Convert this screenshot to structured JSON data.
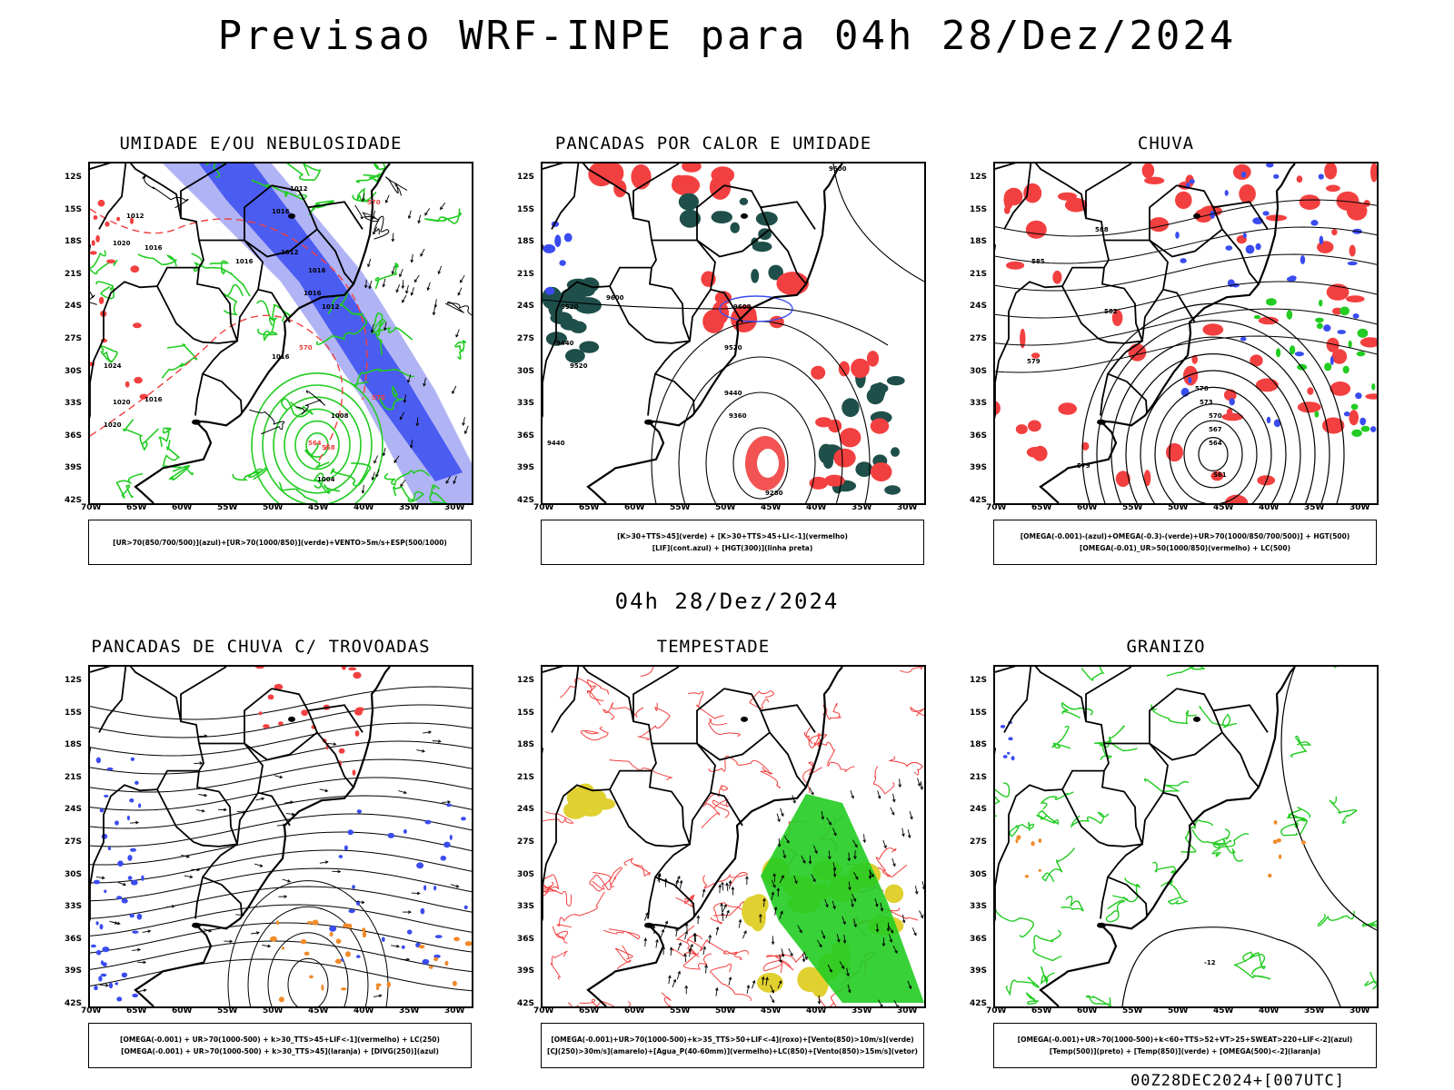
{
  "title": "Previsao WRF-INPE  para 04h 28/Dez/2024",
  "mid_title": "04h 28/Dez/2024",
  "footer": "00Z28DEC2024+[007UTC]",
  "lat_ticks": [
    "12S",
    "15S",
    "18S",
    "21S",
    "24S",
    "27S",
    "30S",
    "33S",
    "36S",
    "39S",
    "42S"
  ],
  "lon_ticks": [
    "70W",
    "65W",
    "60W",
    "55W",
    "50W",
    "45W",
    "40W",
    "35W",
    "30W"
  ],
  "colors": {
    "blue": "#3a4cf0",
    "lavender": "#b0b4f5",
    "red": "#f24040",
    "green": "#22cc22",
    "darkteal": "#1f4f4a",
    "orange": "#f08a2a",
    "yellow": "#e0d030"
  },
  "panels": [
    {
      "title": "UMIDADE E/OU NEBULOSIDADE",
      "legend": [
        "[UR>70(850/700/500)](azul)+[UR>70(1000/850)](verde)+VENTO>5m/s+ESP(500/1000)"
      ],
      "labels": [
        "1012",
        "1012",
        "1016",
        "1016",
        "1012",
        "1016",
        "1016",
        "1012",
        "1020",
        "1016",
        "1020",
        "1020",
        "1024",
        "1016",
        "1016",
        "1004",
        "1008",
        "570",
        "564",
        "558",
        "570",
        "570"
      ]
    },
    {
      "title": "PANCADAS POR CALOR E UMIDADE",
      "legend": [
        "[K>30+TTS>45](verde) + [K>30+TTS>45+LI<-1](vermelho)",
        "[LIF](cont.azul) + [HGT(300)](linha preta)"
      ],
      "labels": [
        "9600",
        "9520",
        "9600",
        "9440",
        "9520",
        "9600",
        "9520",
        "9440",
        "9360",
        "9440",
        "9280"
      ]
    },
    {
      "title": "CHUVA",
      "legend": [
        "[OMEGA(-0.001)-(azul)+OMEGA(-0.3)-(verde)+UR>70(1000/850/700/500)] + HGT(500)",
        "[OMEGA(-0.01)_UR>50(1000/850)(vermelho) + LC(500)"
      ],
      "labels": [
        "588",
        "585",
        "582",
        "579",
        "576",
        "573",
        "570",
        "567",
        "564",
        "561",
        "579"
      ]
    },
    {
      "title": "PANCADAS DE CHUVA C/ TROVOADAS",
      "legend": [
        "[OMEGA(-0.001) + UR>70(1000-500) + k>30_TTS>45+LIF<-1](vermelho) + LC(250)",
        "[OMEGA(-0.001) + UR>70(1000-500) + k>30_TTS>45](laranja) + [DIVG(250)](azul)"
      ],
      "labels": []
    },
    {
      "title": "TEMPESTADE",
      "legend": [
        "[OMEGA(-0.001)+UR>70(1000-500)+k>35_TTS>50+LIF<-4](roxo)+[Vento(850)>10m/s](verde)",
        "[CJ(250)>30m/s](amarelo)+[Agua_P(40-60mm)](vermelho)+LC(850)+[Vento(850)>15m/s](vetor)"
      ],
      "labels": []
    },
    {
      "title": "GRANIZO",
      "legend": [
        "[OMEGA(-0.001)+UR>70(1000-500)+k<60+TTS>52+VT>25+SWEAT>220+LIF<-2](azul)",
        "[Temp(500)](preto) + [Temp(850)](verde) + [OMEGA(500)<-2](laranja)"
      ],
      "labels": [
        "-12"
      ]
    }
  ]
}
